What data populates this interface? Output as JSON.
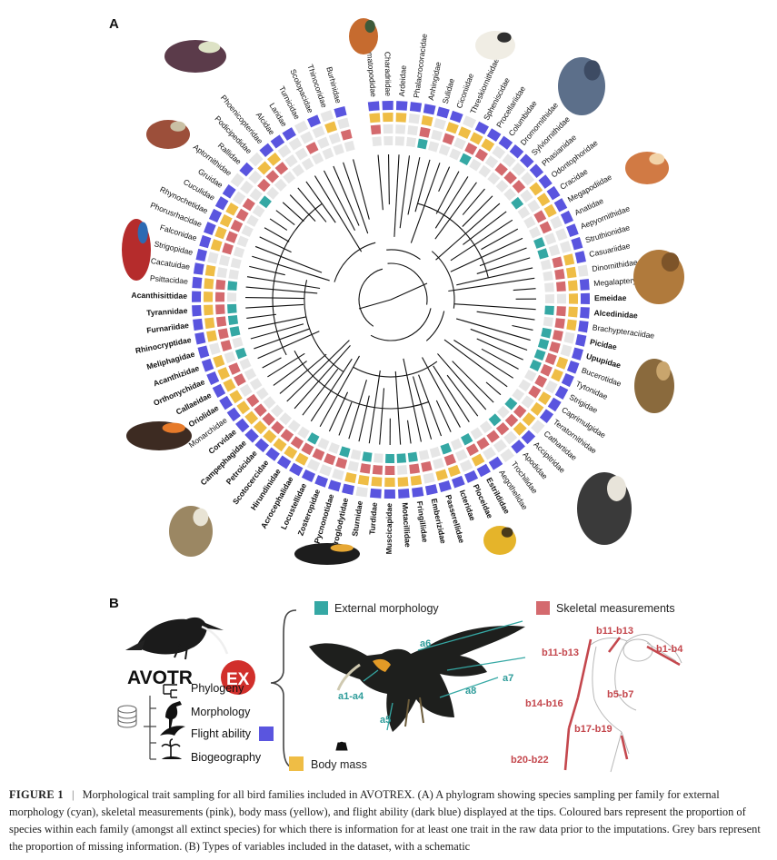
{
  "panel_a": {
    "label": "A",
    "families": [
      "Haematopodidae",
      "Charadriidae",
      "Ardeidae",
      "Phalacrocoracidae",
      "Anhingidae",
      "Sulidae",
      "Ciconiidae",
      "Threskiornithidae",
      "Spheniscidae",
      "Procellariidae",
      "Columbidae",
      "Dromornithidae",
      "Sylviornithidae",
      "Phasianidae",
      "Odontophoridae",
      "Cracidae",
      "Megapodiidae",
      "Anatidae",
      "Aepyornithidae",
      "Struthionidae",
      "Casuariidae",
      "Dinornithidae",
      "Megalapterygidae",
      "Emeidae",
      "Alcedinidae",
      "Brachypteraciidae",
      "Picidae",
      "Upupidae",
      "Bucerotidae",
      "Tytonidae",
      "Strigidae",
      "Caprimulgidae",
      "Teratornithidae",
      "Cathartidae",
      "Accipitridae",
      "Apodidae",
      "Trochilidae",
      "Aegothelidae",
      "Estrildidae",
      "Ploceidae",
      "Icteridae",
      "Passerellidae",
      "Emberizidae",
      "Fringillidae",
      "Motacillidae",
      "Muscicapidae",
      "Turdidae",
      "Sturnidae",
      "Troglodytidae",
      "Pycnonotidae",
      "Zosteropidae",
      "Locustellidae",
      "Acrocephalidae",
      "Hirundinidae",
      "Scotocercidae",
      "Petroicidae",
      "Campephagidae",
      "Corvidae",
      "Monarchidae",
      "Oriolidae",
      "Callaeidae",
      "Orthonychidae",
      "Acanthizidae",
      "Meliphagidae",
      "Rhinocryptidae",
      "Furnariidae",
      "Tyrannidae",
      "Acanthisittidae",
      "Psittacidae",
      "Cacatuidae",
      "Strigopidae",
      "Falconidae",
      "Phorusrhacidae",
      "Rhynochetidae",
      "Cuculidae",
      "Gruidae",
      "Aptornithidae",
      "Rallidae",
      "Podicipedidae",
      "Phoenicopteridae",
      "Alcidae",
      "Laridae",
      "Turnicidae",
      "Scolopacidae",
      "Thinocoridae",
      "Burhinidae"
    ],
    "bold_families": [
      "Emeidae",
      "Alcedinidae",
      "Picidae",
      "Upupidae",
      "Acanthisittidae",
      "Tyrannidae",
      "Furnariidae",
      "Rhinocryptidae",
      "Meliphagidae",
      "Acanthizidae",
      "Orthonychidae",
      "Callaeidae",
      "Oriolidae",
      "Corvidae",
      "Campephagidae",
      "Petroicidae",
      "Scotocercidae",
      "Hirundinidae",
      "Acrocephalidae",
      "Locustellidae",
      "Zosteropidae",
      "Pycnonotidae",
      "Troglodytidae",
      "Sturnidae",
      "Turdidae",
      "Muscicapidae",
      "Motacillidae",
      "Fringillidae",
      "Emberizidae",
      "Passerellidae",
      "Icteridae",
      "Ploceidae",
      "Estrildidae"
    ],
    "illustrations": [
      "bird-illustration-pigeon",
      "bird-illustration-hawk-owl",
      "bird-illustration-stork",
      "bird-illustration-moa-bird",
      "bird-illustration-dodo",
      "bird-illustration-elephant-bird",
      "bird-illustration-owl",
      "bird-illustration-eagle",
      "bird-illustration-weaver",
      "bird-illustration-huia",
      "bird-illustration-cuckoo",
      "bird-illustration-crested-bird",
      "bird-illustration-honeyeater",
      "bird-illustration-parrot",
      "bird-illustration-rail",
      "bird-illustration-quail-dove"
    ]
  },
  "panel_b": {
    "label": "B",
    "logo": {
      "part1": "AVOTR",
      "part2": "EX"
    },
    "categories": [
      "Phylogeny",
      "Morphology",
      "Flight ability",
      "Biogeography"
    ],
    "body_mass": "Body mass",
    "external_morphology": "External morphology",
    "skeletal_measurements": "Skeletal measurements",
    "cyan_labels": [
      "a6",
      "a7",
      "a1-a4",
      "a8",
      "a5"
    ],
    "red_labels": [
      "b11-b13",
      "b11-b13",
      "b1-b4",
      "b5-b7",
      "b14-b16",
      "b17-b19",
      "b20-b22"
    ]
  },
  "caption": {
    "label": "FIGURE 1",
    "separator": "|",
    "text": "Morphological trait sampling for all bird families included in AVOTREX. (A) A phylogram showing species sampling per family for external morphology (cyan), skeletal measurements (pink), body mass (yellow), and flight ability (dark blue) displayed at the tips. Coloured bars represent the proportion of species within each family (amongst all extinct species) for which there is information for at least one trait in the raw data prior to the imputations. Grey bars represent the proportion of missing information. (B) Types of variables included in the dataset, with a schematic"
  },
  "colors": {
    "cyan": "#35a8a4",
    "pink": "#d46a6e",
    "yellow": "#efbd45",
    "dark_blue": "#5a55df",
    "grey": "#e6e6e6",
    "logo_red": "#d12f2b"
  }
}
